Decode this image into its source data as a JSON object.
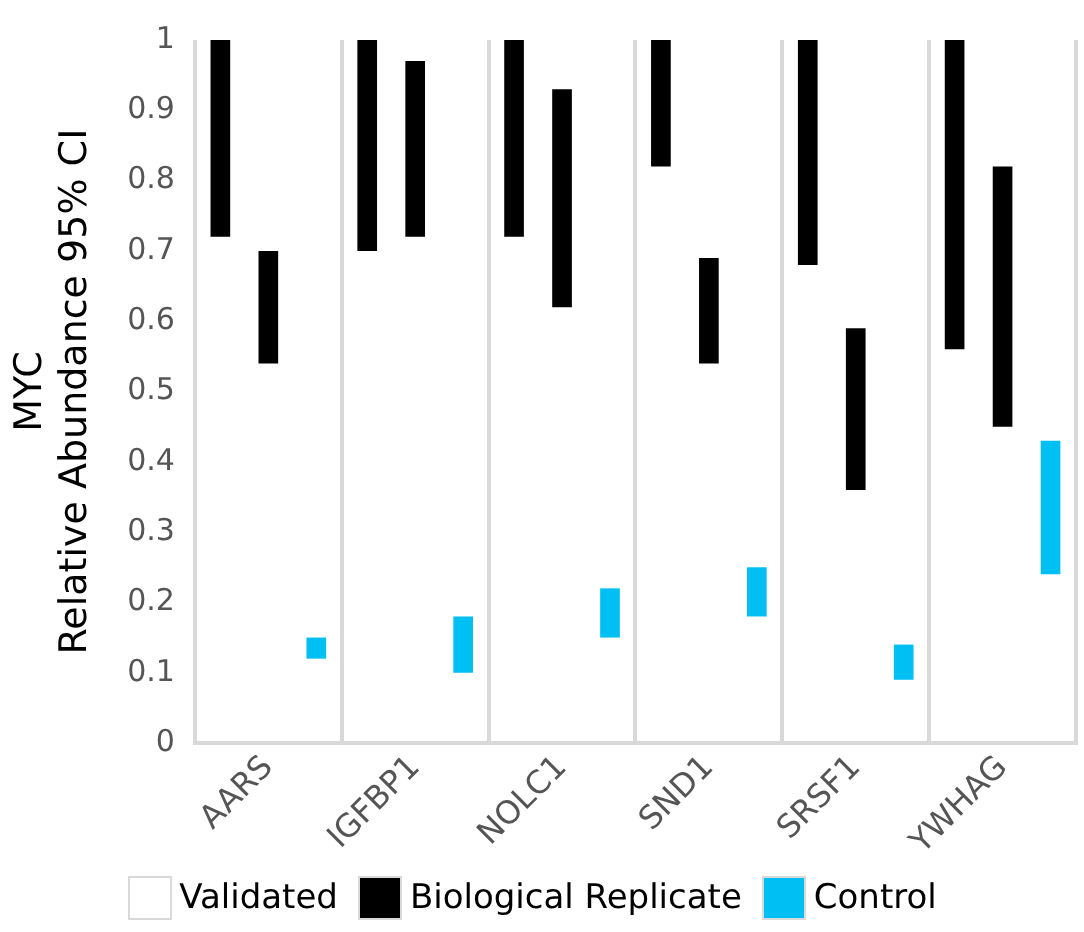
{
  "chart_data": {
    "type": "bar",
    "ylabel": "MYC\nRelative Abundance 95% CI",
    "categories": [
      "AARS",
      "IGFBP1",
      "NOLC1",
      "SND1",
      "SRSF1",
      "YWHAG"
    ],
    "annotations": [
      "Validated"
    ],
    "series": [
      {
        "name": "Biological Replicate",
        "color": "#000000",
        "base": [
          0.72,
          0.7,
          0.72,
          0.82,
          0.68,
          0.56
        ],
        "values": [
          0.28,
          0.3,
          0.28,
          0.18,
          0.32,
          0.44
        ]
      },
      {
        "color": "#000000",
        "base": [
          0.54,
          0.72,
          0.62,
          0.54,
          0.36,
          0.45
        ],
        "values": [
          0.16,
          0.25,
          0.31,
          0.15,
          0.23,
          0.37
        ]
      },
      {
        "name": "Control",
        "color": "#00bff3",
        "base": [
          0.12,
          0.1,
          0.15,
          0.18,
          0.09,
          0.24
        ],
        "values": [
          0.03,
          0.08,
          0.07,
          0.07,
          0.05,
          0.19
        ]
      }
    ],
    "ylim": [
      0,
      1
    ],
    "yticks": [
      0,
      0.1,
      0.2,
      0.3,
      0.4,
      0.5,
      0.6,
      0.7,
      0.8,
      0.9,
      1
    ],
    "grid": "x",
    "legend": "bottom"
  }
}
